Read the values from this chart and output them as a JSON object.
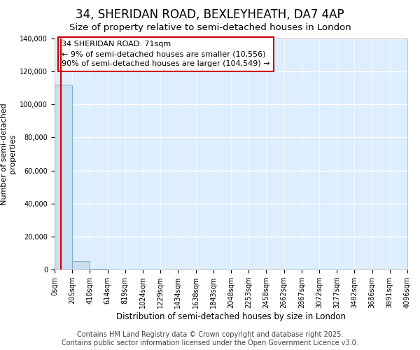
{
  "title": "34, SHERIDAN ROAD, BEXLEYHEATH, DA7 4AP",
  "subtitle": "Size of property relative to semi-detached houses in London",
  "xlabel": "Distribution of semi-detached houses by size in London",
  "ylabel_line1": "Number of semi-detached",
  "ylabel_line2": "properties",
  "annotation_text": "34 SHERIDAN ROAD: 71sqm\n← 9% of semi-detached houses are smaller (10,556)\n90% of semi-detached houses are larger (104,549) →",
  "bin_edges": [
    0,
    205,
    410,
    614,
    819,
    1024,
    1229,
    1434,
    1638,
    1843,
    2048,
    2253,
    2458,
    2662,
    2867,
    3072,
    3277,
    3482,
    3686,
    3891,
    4096
  ],
  "bar_heights": [
    112000,
    5000,
    350,
    80,
    30,
    12,
    6,
    3,
    2,
    1,
    1,
    0,
    0,
    0,
    0,
    0,
    0,
    0,
    0,
    0
  ],
  "bar_color": "#ccdff0",
  "bar_edge_color": "#7ab0d0",
  "line_color": "#cc0000",
  "property_size": 71,
  "ylim": [
    0,
    140000
  ],
  "yticks": [
    0,
    20000,
    40000,
    60000,
    80000,
    100000,
    120000,
    140000
  ],
  "background_color": "#ffffff",
  "plot_bg_color": "#ddeeff",
  "footer_text": "Contains HM Land Registry data © Crown copyright and database right 2025.\nContains public sector information licensed under the Open Government Licence v3.0.",
  "title_fontsize": 12,
  "subtitle_fontsize": 9.5,
  "annotation_fontsize": 8,
  "footer_fontsize": 7,
  "tick_fontsize": 7,
  "ylabel_fontsize": 8,
  "xlabel_fontsize": 8.5
}
